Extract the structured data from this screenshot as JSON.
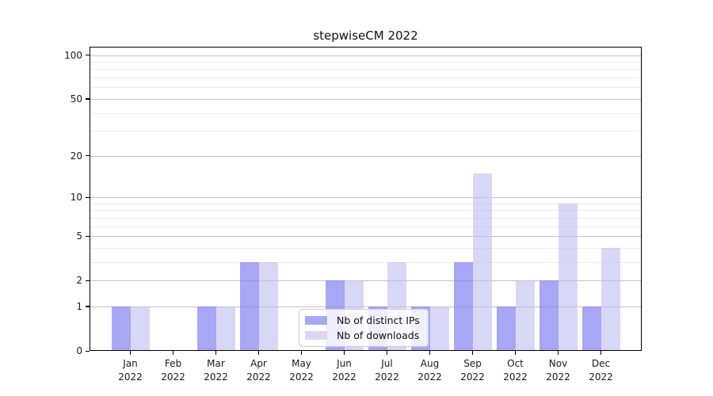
{
  "chart_data": {
    "type": "bar",
    "title": "stepwiseCM 2022",
    "categories": [
      "Jan 2022",
      "Feb 2022",
      "Mar 2022",
      "Apr 2022",
      "May 2022",
      "Jun 2022",
      "Jul 2022",
      "Aug 2022",
      "Sep 2022",
      "Oct 2022",
      "Nov 2022",
      "Dec 2022"
    ],
    "month_labels": [
      "Jan",
      "Feb",
      "Mar",
      "Apr",
      "May",
      "Jun",
      "Jul",
      "Aug",
      "Sep",
      "Oct",
      "Nov",
      "Dec"
    ],
    "year_label": "2022",
    "series": [
      {
        "name": "Nb of distinct IPs",
        "slug": "distinct-ips",
        "color": "#a8a8f4",
        "fill": "rgba(130,130,242,0.70)",
        "values": [
          1,
          0,
          1,
          3,
          0,
          2,
          1,
          1,
          3,
          1,
          2,
          1
        ]
      },
      {
        "name": "Nb of downloads",
        "slug": "downloads",
        "color": "#d8d8f6",
        "fill": "rgba(190,190,240,0.60)",
        "values": [
          1,
          0,
          1,
          3,
          0,
          2,
          3,
          1,
          15,
          2,
          9,
          4
        ]
      }
    ],
    "xlabel": "",
    "ylabel": "",
    "yscale": "log1p",
    "ylim": [
      0,
      114
    ],
    "y_major_ticks": [
      0,
      1,
      2,
      5,
      10,
      20,
      50,
      100
    ],
    "y_minor_gridlines": [
      3,
      4,
      6,
      7,
      8,
      9,
      30,
      40,
      60,
      70,
      80,
      90
    ],
    "grid": true,
    "legend_position": "lower-center-inside"
  },
  "colors": {
    "background": "#ffffff",
    "bar_distinct_ips": "#a8a8f4",
    "bar_downloads": "#d8d8f6",
    "grid_major": "#c3c3c3",
    "grid_minor": "#ebebeb",
    "axis": "#000000",
    "text": "#1a1a1a"
  }
}
